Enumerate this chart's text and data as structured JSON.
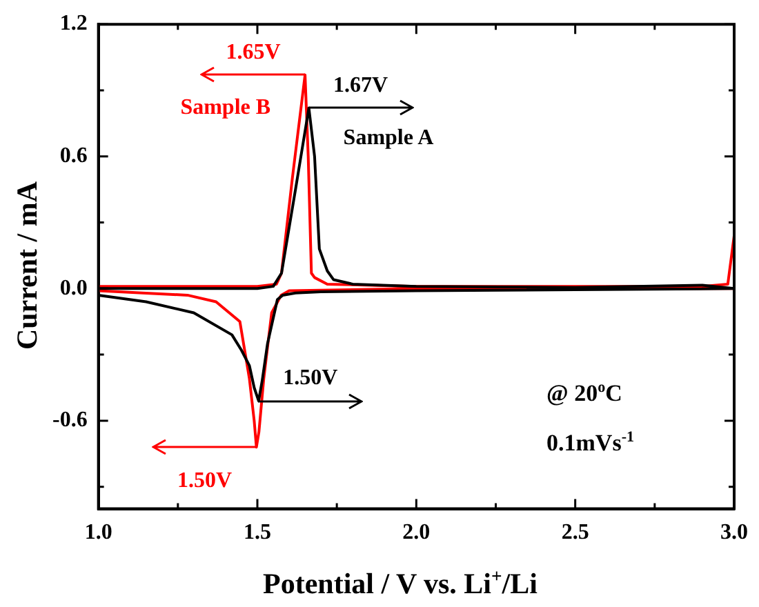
{
  "chart_data": {
    "type": "line",
    "xlabel": "Potential / V vs. Li$^{+}$/Li",
    "ylabel": "Current / mA",
    "xlim": [
      1.0,
      3.0
    ],
    "ylim": [
      -1.0,
      1.2
    ],
    "xticks": [
      {
        "value": 1.0,
        "label": "1.0"
      },
      {
        "value": 1.25,
        "label": null
      },
      1.5,
      {
        "value": 1.75,
        "label": null
      },
      {
        "value": 2.0,
        "label": "2.0"
      },
      {
        "value": 2.25,
        "label": null
      },
      2.5,
      {
        "value": 2.75,
        "label": null
      },
      {
        "value": 3.0,
        "label": "3.0"
      }
    ],
    "yticks": [
      {
        "value": -0.9,
        "label": null
      },
      -0.6,
      {
        "value": -0.3,
        "label": null
      },
      {
        "value": 0,
        "label": "0.0"
      },
      {
        "value": 0.3,
        "label": null
      },
      0.6,
      {
        "value": 0.9,
        "label": null
      },
      1.2
    ],
    "grid": false,
    "legend": "top left",
    "marker": "none",
    "line_style": "solid",
    "series": [
      {
        "name": "Sample A",
        "color": "#000000",
        "x": [
          1.0,
          1.3,
          1.5,
          1.55,
          1.576,
          1.62,
          1.662,
          1.68,
          1.695,
          1.72,
          1.74,
          1.8,
          2.0,
          2.5,
          2.9,
          3.0,
          2.5,
          2.0,
          1.7,
          1.62,
          1.58,
          1.563,
          1.532,
          1.515,
          1.504,
          1.49,
          1.475,
          1.45,
          1.42,
          1.3,
          1.15,
          1.0
        ],
        "values": [
          0.0,
          0.0,
          0.0,
          0.01,
          0.07,
          0.45,
          0.82,
          0.6,
          0.18,
          0.08,
          0.04,
          0.02,
          0.01,
          0.005,
          0.015,
          0.0,
          -0.005,
          -0.01,
          -0.015,
          -0.02,
          -0.03,
          -0.05,
          -0.25,
          -0.42,
          -0.51,
          -0.45,
          -0.35,
          -0.28,
          -0.21,
          -0.11,
          -0.06,
          -0.03
        ]
      },
      {
        "name": "Sample B",
        "color": "#ff0000",
        "x": [
          1.0,
          1.3,
          1.5,
          1.56,
          1.576,
          1.61,
          1.65,
          1.66,
          1.67,
          1.68,
          1.72,
          2.0,
          2.5,
          2.9,
          2.98,
          3.0,
          3.0,
          2.5,
          2.0,
          1.6,
          1.575,
          1.545,
          1.52,
          1.505,
          1.497,
          1.49,
          1.475,
          1.445,
          1.37,
          1.28,
          1.0
        ],
        "values": [
          0.01,
          0.01,
          0.01,
          0.02,
          0.07,
          0.5,
          0.97,
          0.6,
          0.07,
          0.05,
          0.02,
          0.01,
          0.01,
          0.01,
          0.02,
          0.24,
          0.0,
          0.0,
          0.0,
          -0.01,
          -0.03,
          -0.11,
          -0.41,
          -0.65,
          -0.72,
          -0.6,
          -0.41,
          -0.15,
          -0.06,
          -0.03,
          -0.01
        ]
      }
    ],
    "annotations": [
      {
        "text": "1.65V",
        "x": 1.65,
        "y": 0.97
      },
      {
        "text": "1.67V",
        "x": 1.662,
        "y": 0.82
      },
      {
        "text": "1.50V",
        "x": 1.504,
        "y": -0.51
      },
      {
        "text": "1.50V",
        "x": 1.497,
        "y": -0.72
      },
      "@ 20$^{o}$C",
      "0.1mVs$^{-1}$"
    ]
  }
}
